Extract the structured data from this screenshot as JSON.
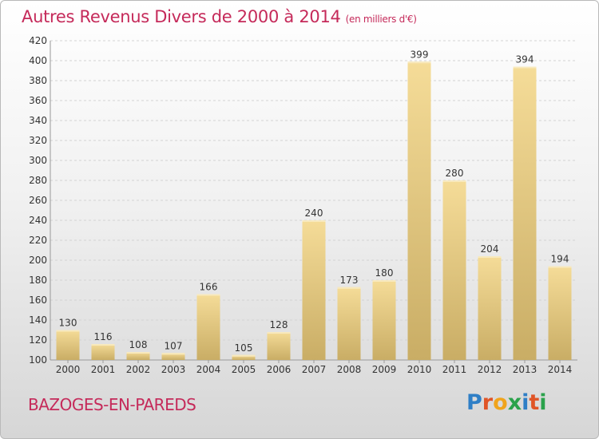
{
  "header": {
    "title": "Autres Revenus Divers de 2000 à 2014",
    "unit": "(en milliers d'€)"
  },
  "footer": {
    "place": "BAZOGES-EN-PAREDS",
    "logo": "Proxiti"
  },
  "colors": {
    "title": "#c52a5a",
    "bar_light": "#f5dc98",
    "bar_dark": "#c9ad65",
    "bar_top": "#f8e9bd"
  },
  "chart_data": {
    "type": "bar",
    "title": "Autres Revenus Divers de 2000 à 2014",
    "subtitle": "(en milliers d'€)",
    "xlabel": "",
    "ylabel": "",
    "categories": [
      "2000",
      "2001",
      "2002",
      "2003",
      "2004",
      "2005",
      "2006",
      "2007",
      "2008",
      "2009",
      "2010",
      "2011",
      "2012",
      "2013",
      "2014"
    ],
    "values": [
      130,
      116,
      108,
      107,
      166,
      105,
      128,
      240,
      173,
      180,
      399,
      280,
      204,
      394,
      194
    ],
    "ylim": [
      100,
      420
    ],
    "yticks": [
      100,
      120,
      140,
      160,
      180,
      200,
      220,
      240,
      260,
      280,
      300,
      320,
      340,
      360,
      380,
      400,
      420
    ],
    "grid": true,
    "data_labels": true
  }
}
